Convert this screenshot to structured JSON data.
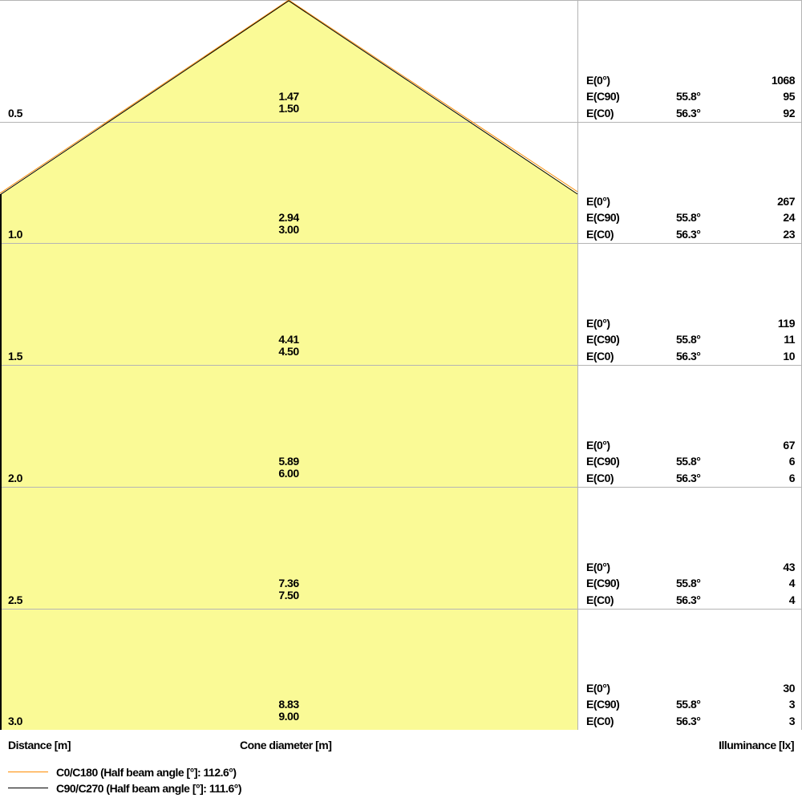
{
  "chart_data": {
    "type": "cone-diagram",
    "colors": {
      "fill": "#fafa96",
      "c0_line": "#ff8c00",
      "c90_line": "#000000",
      "grid": "#b4b4b4"
    },
    "labels": {
      "distance": "Distance [m]",
      "cone_diameter": "Cone diameter [m]",
      "illuminance": "Illuminance [lx]"
    },
    "legend": [
      {
        "name": "C0/C180 (Half beam angle [°]: 112.6°)",
        "color": "#ff8c00"
      },
      {
        "name": "C90/C270 (Half beam angle [°]: 111.6°)",
        "color": "#000000"
      }
    ],
    "row_labels": {
      "e0": "E(0°)",
      "ec90": "E(C90)",
      "ec0": "E(C0)"
    },
    "rows": [
      {
        "distance": "0.5",
        "diam_c90": "1.47",
        "diam_c0": "1.50",
        "e0": "1068",
        "ec90_angle": "55.8°",
        "ec90": "95",
        "ec0_angle": "56.3°",
        "ec0": "92"
      },
      {
        "distance": "1.0",
        "diam_c90": "2.94",
        "diam_c0": "3.00",
        "e0": "267",
        "ec90_angle": "55.8°",
        "ec90": "24",
        "ec0_angle": "56.3°",
        "ec0": "23"
      },
      {
        "distance": "1.5",
        "diam_c90": "4.41",
        "diam_c0": "4.50",
        "e0": "119",
        "ec90_angle": "55.8°",
        "ec90": "11",
        "ec0_angle": "56.3°",
        "ec0": "10"
      },
      {
        "distance": "2.0",
        "diam_c90": "5.89",
        "diam_c0": "6.00",
        "e0": "67",
        "ec90_angle": "55.8°",
        "ec90": "6",
        "ec0_angle": "56.3°",
        "ec0": "6"
      },
      {
        "distance": "2.5",
        "diam_c90": "7.36",
        "diam_c0": "7.50",
        "e0": "43",
        "ec90_angle": "55.8°",
        "ec90": "4",
        "ec0_angle": "56.3°",
        "ec0": "4"
      },
      {
        "distance": "3.0",
        "diam_c90": "8.83",
        "diam_c0": "9.00",
        "e0": "30",
        "ec90_angle": "55.8°",
        "ec90": "3",
        "ec0_angle": "56.3°",
        "ec0": "3"
      }
    ]
  }
}
